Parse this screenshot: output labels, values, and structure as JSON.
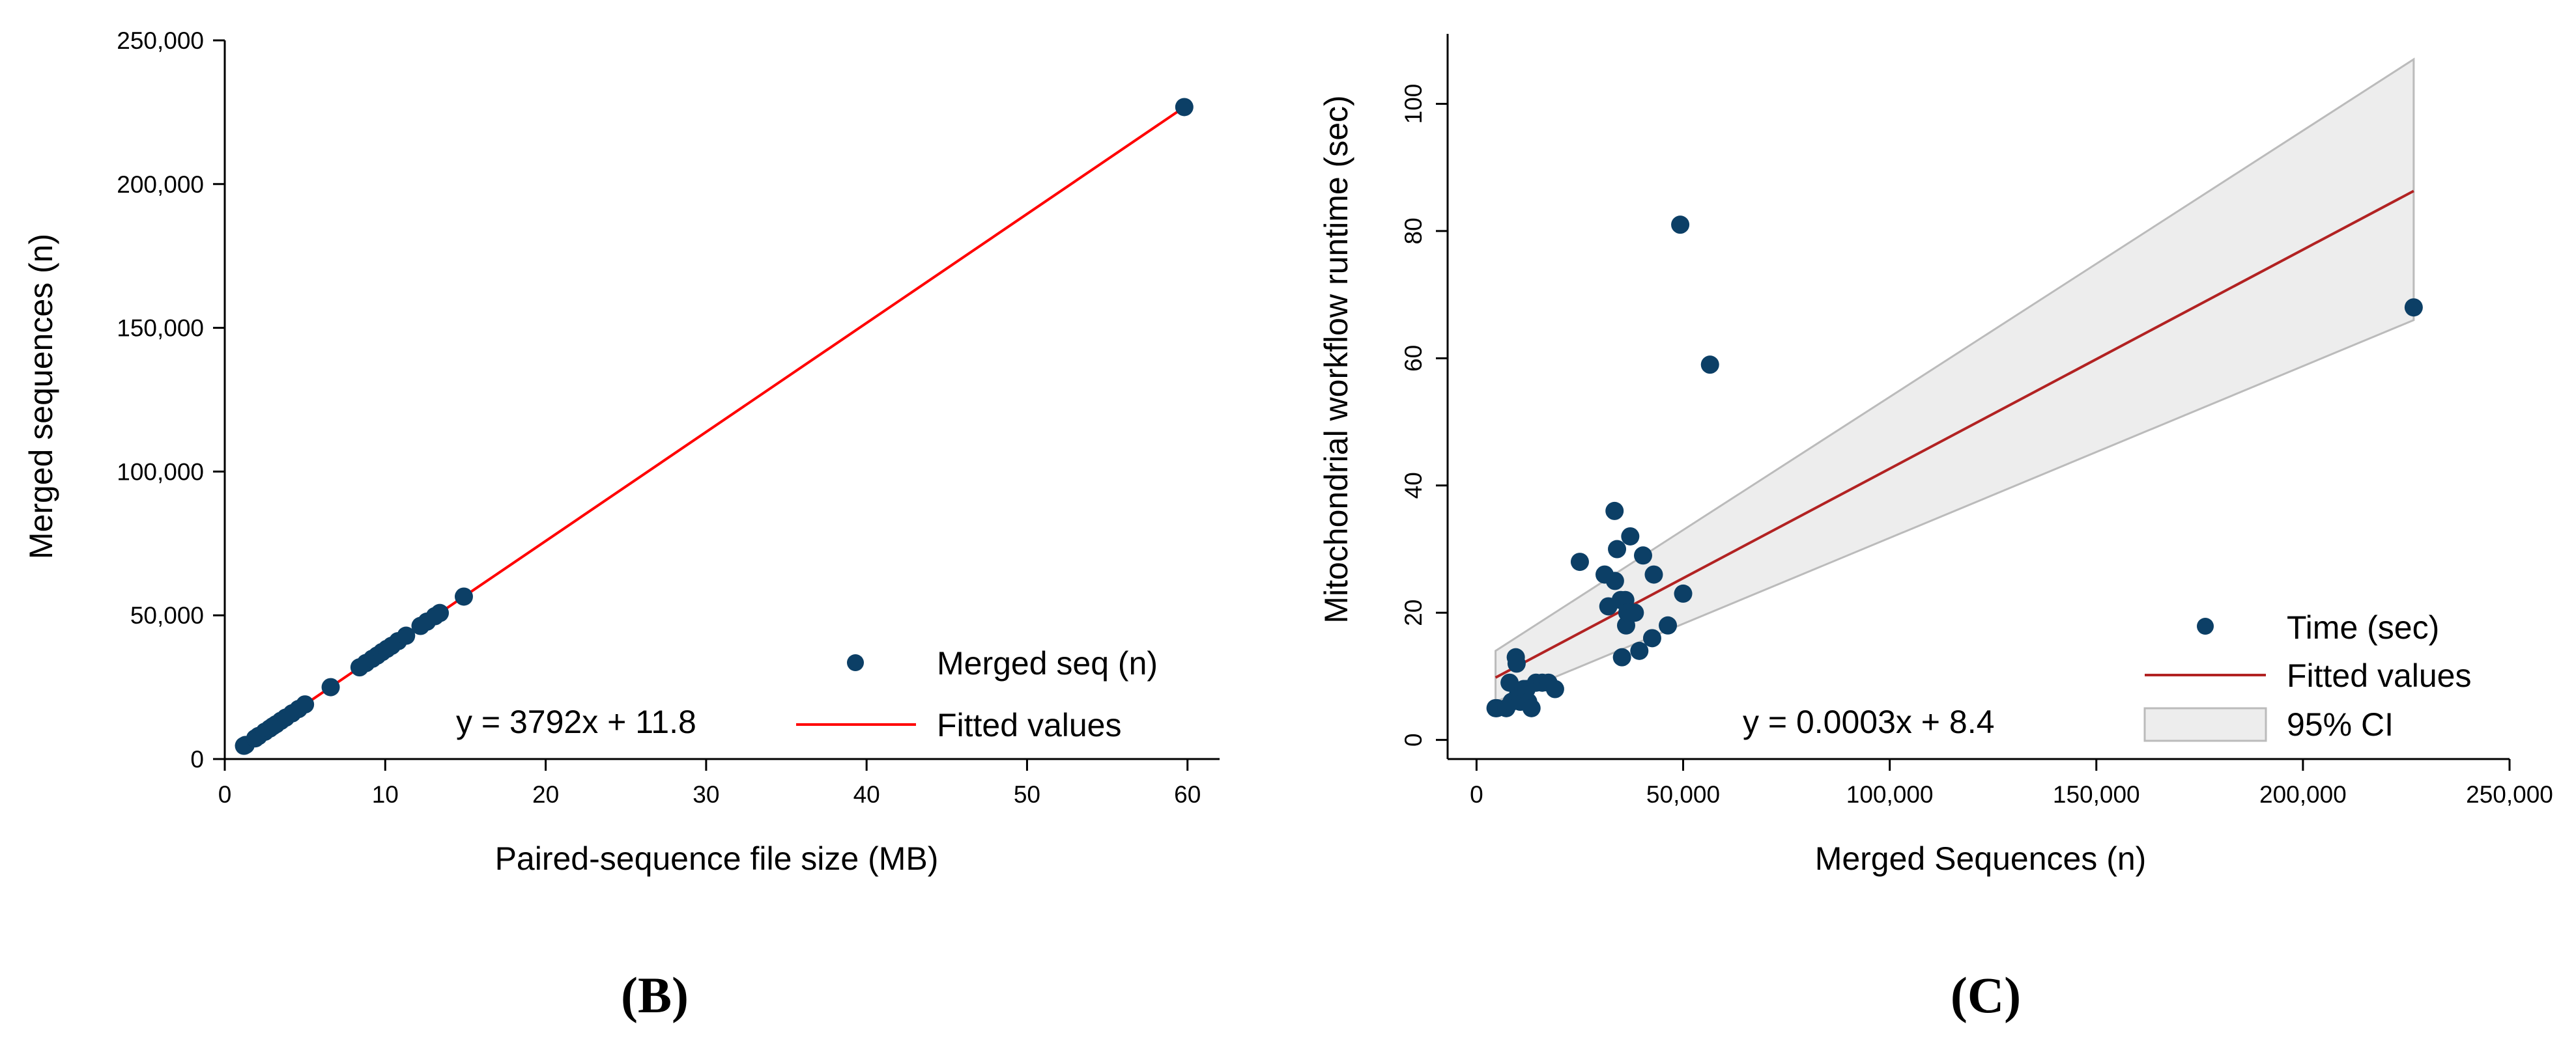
{
  "chart_data": [
    {
      "type": "scatter",
      "panel_label": "(B)",
      "xlabel": "Paired-sequence file size (MB)",
      "ylabel": "Merged sequences (n)",
      "xlim": [
        0,
        62
      ],
      "ylim": [
        0,
        250000
      ],
      "x_ticks": [
        0,
        10,
        20,
        30,
        40,
        50,
        60
      ],
      "y_ticks": [
        0,
        50000,
        100000,
        150000,
        200000,
        250000
      ],
      "x_tick_labels": [
        "0",
        "10",
        "20",
        "30",
        "40",
        "50",
        "60"
      ],
      "y_tick_labels": [
        "0",
        "50,000",
        "100,000",
        "150,000",
        "200,000",
        "250,000"
      ],
      "grid": false,
      "legend_position": "bottom-right",
      "annotation": "y = 3792x + 11.8",
      "series": [
        {
          "name": "Merged seq (n)",
          "kind": "points",
          "color": "#0c3f66",
          "points": [
            [
              1.2,
              4600
            ],
            [
              1.3,
              4900
            ],
            [
              1.9,
              7200
            ],
            [
              2.1,
              8000
            ],
            [
              2.5,
              9500
            ],
            [
              2.8,
              10600
            ],
            [
              3.0,
              11400
            ],
            [
              3.2,
              12100
            ],
            [
              3.5,
              13300
            ],
            [
              3.8,
              14400
            ],
            [
              4.2,
              15900
            ],
            [
              4.6,
              17400
            ],
            [
              5.0,
              19000
            ],
            [
              6.6,
              25000
            ],
            [
              8.4,
              31900
            ],
            [
              8.8,
              33400
            ],
            [
              9.2,
              34900
            ],
            [
              9.5,
              36000
            ],
            [
              9.8,
              37200
            ],
            [
              10.1,
              38300
            ],
            [
              10.4,
              39400
            ],
            [
              10.8,
              41000
            ],
            [
              11.3,
              42900
            ],
            [
              12.2,
              46300
            ],
            [
              12.6,
              47800
            ],
            [
              13.1,
              49700
            ],
            [
              13.4,
              50800
            ],
            [
              14.9,
              56500
            ],
            [
              59.8,
              226800
            ]
          ]
        },
        {
          "name": "Fitted values",
          "kind": "line",
          "color": "#ff0000",
          "line": [
            [
              1.2,
              4562
            ],
            [
              59.8,
              226776
            ]
          ]
        }
      ]
    },
    {
      "type": "scatter",
      "panel_label": "(C)",
      "xlabel": "Merged Sequences (n)",
      "ylabel": "Mitochondrial workflow runtime (sec)",
      "xlim": [
        -7000,
        250000
      ],
      "ylim": [
        -3,
        111
      ],
      "x_ticks": [
        0,
        50000,
        100000,
        150000,
        200000,
        250000
      ],
      "y_ticks": [
        0,
        20,
        40,
        60,
        80,
        100
      ],
      "x_tick_labels": [
        "0",
        "50,000",
        "100,000",
        "150,000",
        "200,000",
        "250,000"
      ],
      "y_tick_labels": [
        "0",
        "20",
        "40",
        "60",
        "80",
        "100"
      ],
      "grid": false,
      "legend_position": "bottom-right",
      "annotation": "y = 0.0003x + 8.4",
      "series": [
        {
          "name": "Time (sec)",
          "kind": "points",
          "color": "#0c3f66",
          "points": [
            [
              4600,
              5
            ],
            [
              4900,
              5
            ],
            [
              7200,
              5
            ],
            [
              8000,
              9
            ],
            [
              8500,
              6
            ],
            [
              9500,
              13
            ],
            [
              9700,
              12
            ],
            [
              10000,
              7
            ],
            [
              10600,
              6
            ],
            [
              11400,
              8
            ],
            [
              12100,
              8
            ],
            [
              12500,
              6
            ],
            [
              13300,
              5
            ],
            [
              14400,
              9
            ],
            [
              15900,
              9
            ],
            [
              17400,
              9
            ],
            [
              19000,
              8
            ],
            [
              25000,
              28
            ],
            [
              31000,
              26
            ],
            [
              31900,
              21
            ],
            [
              33400,
              36
            ],
            [
              33500,
              25
            ],
            [
              34000,
              30
            ],
            [
              34900,
              22
            ],
            [
              35200,
              13
            ],
            [
              36000,
              22
            ],
            [
              36200,
              18
            ],
            [
              36500,
              20
            ],
            [
              37200,
              32
            ],
            [
              38300,
              20
            ],
            [
              39400,
              14
            ],
            [
              40300,
              29
            ],
            [
              42900,
              26
            ],
            [
              42500,
              16
            ],
            [
              46300,
              18
            ],
            [
              49300,
              81
            ],
            [
              50000,
              23
            ],
            [
              56500,
              59
            ],
            [
              226800,
              68
            ]
          ]
        },
        {
          "name": "Fitted values",
          "kind": "line",
          "color": "#b22222",
          "line": [
            [
              4600,
              9.8
            ],
            [
              226800,
              86.3
            ]
          ]
        },
        {
          "name": "95% CI",
          "kind": "band",
          "color": "#ededed",
          "stroke": "#bbbbbb",
          "band_x": [
            4600,
            226800
          ],
          "band_upper": [
            14,
            107
          ],
          "band_lower": [
            6,
            66
          ]
        }
      ]
    }
  ]
}
